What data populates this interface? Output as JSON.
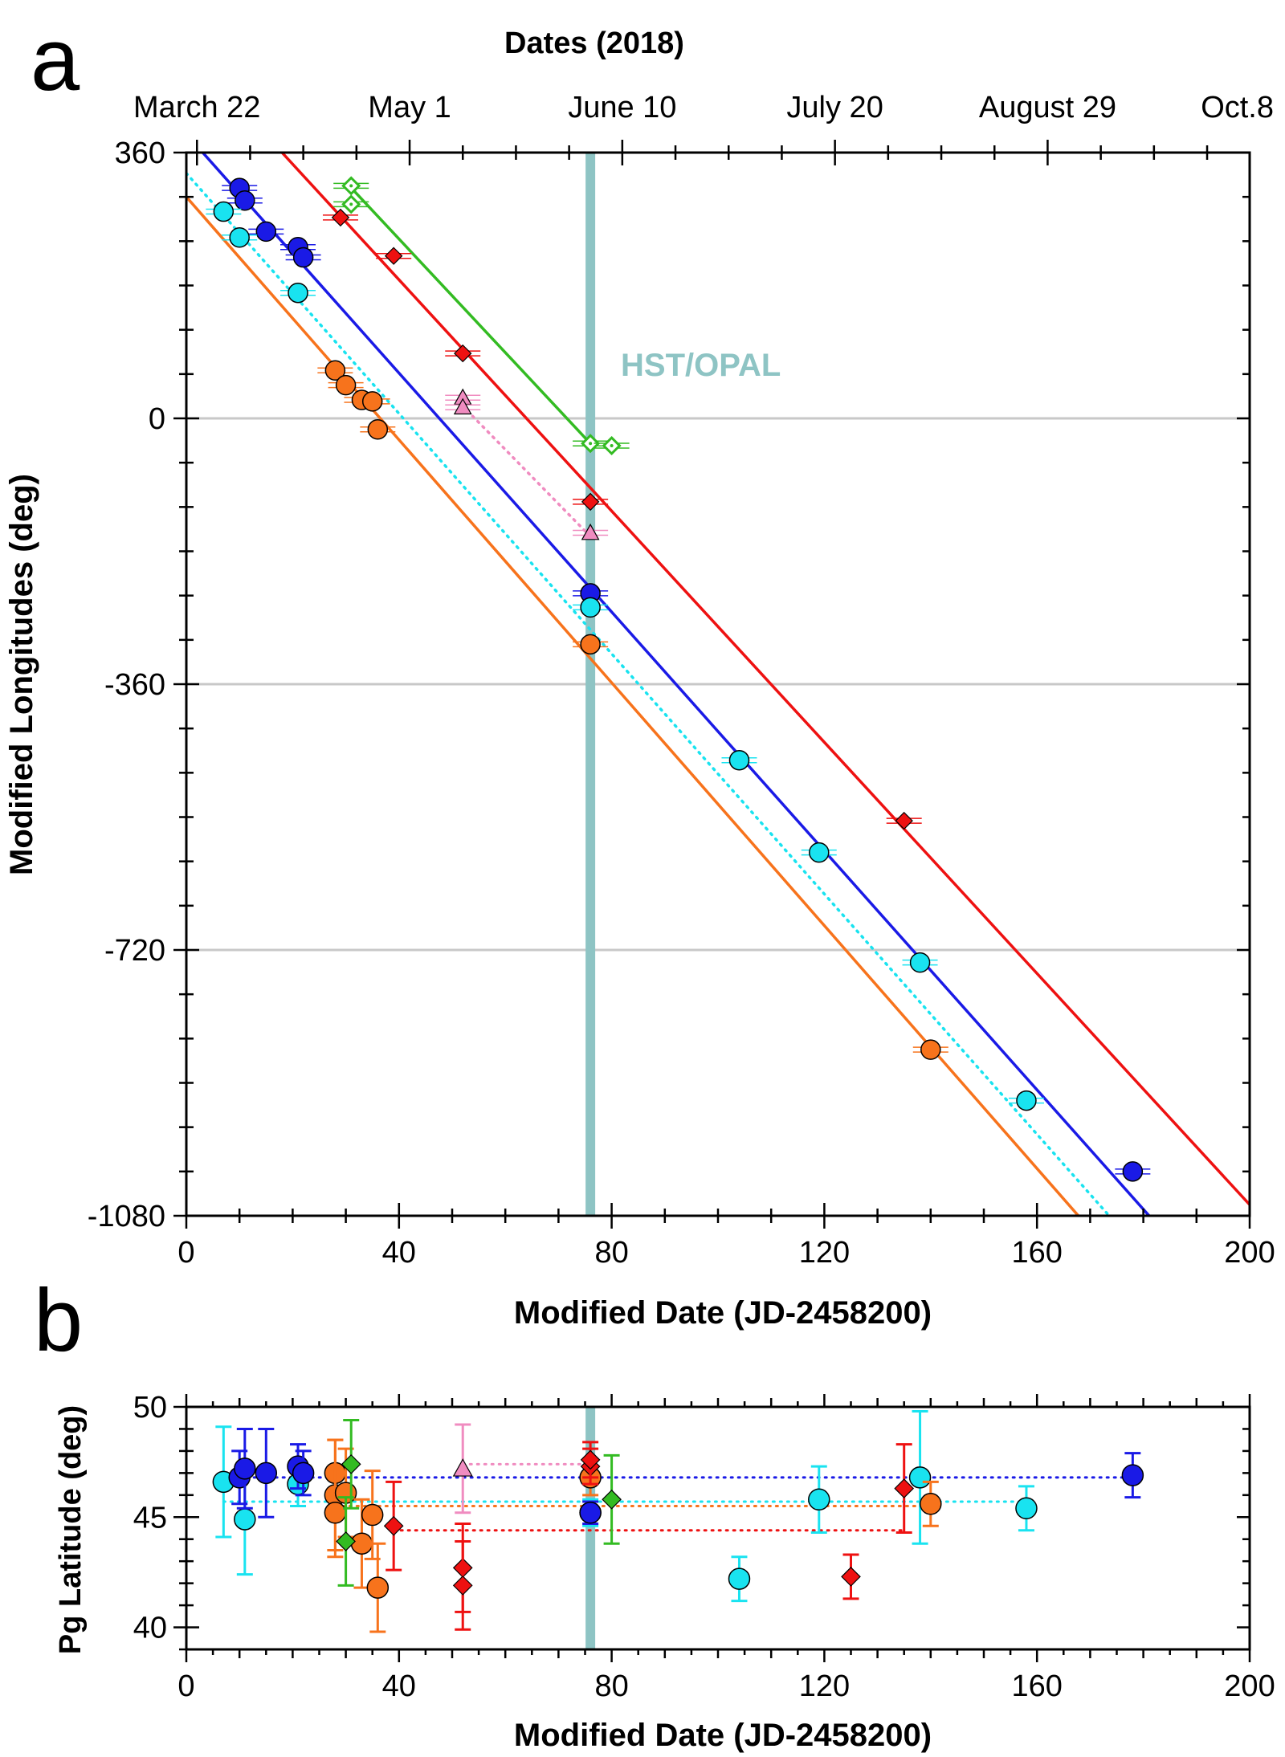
{
  "panel_a": {
    "label": "a",
    "top_title": "Dates (2018)",
    "date_labels": [
      "March 22",
      "May 1",
      "June 10",
      "July 20",
      "August 29",
      "Oct.8"
    ],
    "ylabel": "Modified Longitudes (deg)",
    "xlabel": "Modified Date (JD-2458200)",
    "annotation": "HST/OPAL"
  },
  "panel_b": {
    "label": "b",
    "ylabel": "Pg Latitude (deg)",
    "xlabel": "Modified Date (JD-2458200)"
  },
  "chart_data": [
    {
      "type": "scatter",
      "panel": "a",
      "title": "",
      "xlabel": "Modified Date (JD-2458200)",
      "ylabel": "Modified Longitudes (deg)",
      "xlim": [
        0,
        200
      ],
      "ylim": [
        -1080,
        360
      ],
      "xticks": [
        0,
        40,
        80,
        120,
        160,
        200
      ],
      "yticks": [
        360,
        0,
        -360,
        -720,
        -1080
      ],
      "gridlines_y": [
        0,
        -360,
        -720
      ],
      "top_axis": {
        "ticks": [
          2,
          42,
          82,
          122,
          162,
          202
        ],
        "labels": [
          "March 22",
          "May 1",
          "June 10",
          "July 20",
          "August 29",
          "Oct.8"
        ]
      },
      "vline": {
        "x": 76,
        "label": "HST/OPAL"
      },
      "colors": {
        "blue": "#1a1ae6",
        "cyan": "#19e3f0",
        "orange": "#f7731c",
        "red": "#ee1111",
        "green": "#33bb22",
        "pink": "#f08cc0",
        "hst": "#8ec4c4",
        "grid": "#c8c8c8"
      },
      "fit_lines": [
        {
          "name": "blue",
          "x": [
            0,
            200
          ],
          "y": [
            385,
            -1233
          ],
          "style": "solid"
        },
        {
          "name": "cyan",
          "x": [
            0,
            200
          ],
          "y": [
            332,
            -1295
          ],
          "style": "dotted"
        },
        {
          "name": "orange",
          "x": [
            0,
            200
          ],
          "y": [
            300,
            -1345
          ],
          "style": "solid"
        },
        {
          "name": "red",
          "x": [
            18,
            200
          ],
          "y": [
            360,
            -1065
          ],
          "style": "solid"
        },
        {
          "name": "green",
          "x": [
            30,
            76
          ],
          "y": [
            320,
            -34
          ],
          "style": "solid"
        },
        {
          "name": "pink",
          "x": [
            51,
            76
          ],
          "y": [
            24,
            -160
          ],
          "style": "dotted"
        }
      ],
      "series": [
        {
          "name": "blue",
          "marker": "circle",
          "points": [
            [
              10,
              312
            ],
            [
              11,
              295
            ],
            [
              15,
              253
            ],
            [
              21,
              232
            ],
            [
              22,
              218
            ],
            [
              76,
              -237
            ],
            [
              178,
              -1020
            ]
          ]
        },
        {
          "name": "cyan",
          "marker": "circle",
          "points": [
            [
              7,
              280
            ],
            [
              10,
              245
            ],
            [
              21,
              170
            ],
            [
              76,
              -256
            ],
            [
              104,
              -463
            ],
            [
              119,
              -588
            ],
            [
              138,
              -737
            ],
            [
              158,
              -924
            ]
          ]
        },
        {
          "name": "orange",
          "marker": "circle",
          "points": [
            [
              28,
              65
            ],
            [
              30,
              45
            ],
            [
              33,
              25
            ],
            [
              35,
              23
            ],
            [
              36,
              -15
            ],
            [
              76,
              -306
            ],
            [
              140,
              -855
            ]
          ]
        },
        {
          "name": "red",
          "marker": "diamond",
          "points": [
            [
              29,
              272
            ],
            [
              39,
              220
            ],
            [
              52,
              88
            ],
            [
              76,
              -113
            ],
            [
              135,
              -545
            ]
          ]
        },
        {
          "name": "green",
          "marker": "open-diamond",
          "points": [
            [
              31,
              315
            ],
            [
              31,
              290
            ],
            [
              76,
              -34
            ],
            [
              80,
              -37
            ]
          ]
        },
        {
          "name": "pink",
          "marker": "triangle",
          "points": [
            [
              52,
              28
            ],
            [
              52,
              15
            ],
            [
              76,
              -155
            ]
          ]
        }
      ]
    },
    {
      "type": "scatter",
      "panel": "b",
      "title": "",
      "xlabel": "Modified Date (JD-2458200)",
      "ylabel": "Pg Latitude (deg)",
      "xlim": [
        0,
        200
      ],
      "ylim": [
        39,
        50
      ],
      "xticks": [
        0,
        40,
        80,
        120,
        160,
        200
      ],
      "yticks": [
        40,
        45,
        50
      ],
      "vline": {
        "x": 76
      },
      "mean_lines": [
        {
          "name": "blue",
          "x": [
            10,
            178
          ],
          "y": 46.8
        },
        {
          "name": "pink",
          "x": [
            52,
            76
          ],
          "y": 47.4
        },
        {
          "name": "cyan",
          "x": [
            7,
            158
          ],
          "y": 45.7
        },
        {
          "name": "orange",
          "x": [
            28,
            140
          ],
          "y": 45.5
        },
        {
          "name": "red",
          "x": [
            39,
            135
          ],
          "y": 44.4
        }
      ],
      "series": [
        {
          "name": "cyan",
          "marker": "circle",
          "points": [
            [
              7,
              46.6,
              2.5
            ],
            [
              11,
              44.9,
              2.5
            ],
            [
              21,
              46.5,
              1.0
            ],
            [
              76,
              45.2,
              0.6
            ],
            [
              104,
              42.2,
              1.0
            ],
            [
              119,
              45.8,
              1.5
            ],
            [
              138,
              46.8,
              3.0
            ],
            [
              158,
              45.4,
              1.0
            ]
          ]
        },
        {
          "name": "blue",
          "marker": "circle",
          "points": [
            [
              10,
              46.8,
              1.2
            ],
            [
              11,
              47.2,
              1.8
            ],
            [
              15,
              47.0,
              2.0
            ],
            [
              21,
              47.3,
              1.0
            ],
            [
              22,
              47.0,
              1.0
            ],
            [
              76,
              45.2,
              0.5
            ],
            [
              178,
              46.9,
              1.0
            ]
          ]
        },
        {
          "name": "orange",
          "marker": "circle",
          "points": [
            [
              28,
              47.0,
              1.5
            ],
            [
              28,
              46.0,
              2.5
            ],
            [
              28,
              45.2,
              2.0
            ],
            [
              30,
              46.1,
              2.0
            ],
            [
              33,
              43.8,
              2.0
            ],
            [
              35,
              45.1,
              2.0
            ],
            [
              36,
              41.8,
              2.0
            ],
            [
              76,
              46.8,
              0.8
            ],
            [
              140,
              45.6,
              1.0
            ]
          ]
        },
        {
          "name": "red",
          "marker": "diamond",
          "points": [
            [
              39,
              44.6,
              2.0
            ],
            [
              52,
              42.7,
              2.0
            ],
            [
              52,
              41.9,
              2.0
            ],
            [
              76,
              47.3,
              0.8
            ],
            [
              76,
              47.6,
              0.8
            ],
            [
              125,
              42.3,
              1.0
            ],
            [
              135,
              46.3,
              2.0
            ]
          ]
        },
        {
          "name": "green",
          "marker": "diamond",
          "points": [
            [
              31,
              47.4,
              2.0
            ],
            [
              30,
              43.9,
              2.0
            ],
            [
              80,
              45.8,
              2.0
            ]
          ]
        },
        {
          "name": "pink",
          "marker": "triangle",
          "points": [
            [
              52,
              47.2,
              2.0
            ]
          ]
        }
      ]
    }
  ]
}
